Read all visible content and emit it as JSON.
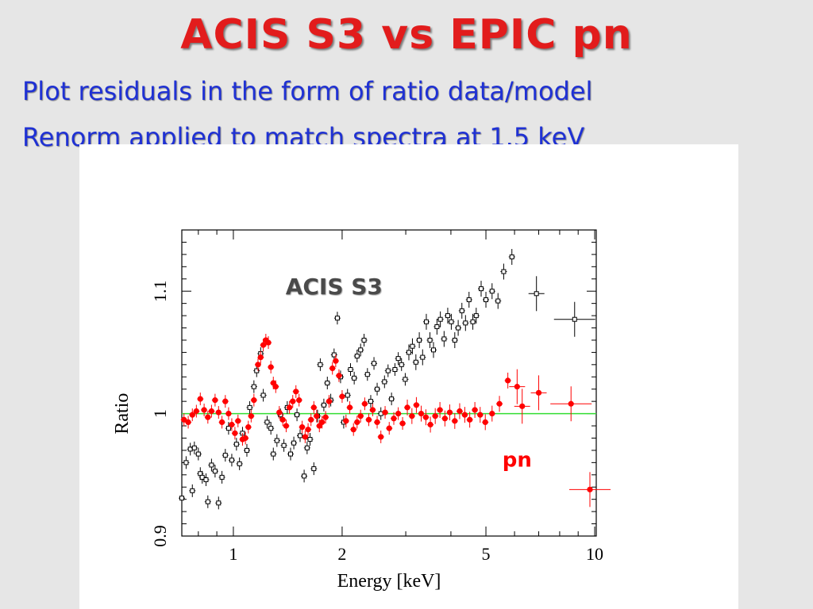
{
  "slide": {
    "title": "ACIS S3 vs EPIC pn",
    "subtitle_lines": [
      "Plot residuals in the form of  ratio data/model",
      "Renorm applied to match spectra at 1.5 keV"
    ]
  },
  "colors": {
    "title": "#e21c1c",
    "subtitle": "#1f31d4",
    "acis_series": "#000000",
    "pn_series": "#ff0000",
    "reference_line": "#33dd33",
    "background": "#e6e6e6"
  },
  "chart_data": {
    "type": "scatter",
    "title": "",
    "xlabel": "Energy [keV]",
    "ylabel": "Ratio",
    "xscale": "log",
    "xlim": [
      0.72,
      10.1
    ],
    "ylim": [
      0.9,
      1.15
    ],
    "xticks": [
      1,
      2,
      5,
      10
    ],
    "xtick_labels": [
      "1",
      "2",
      "5",
      "10"
    ],
    "yticks": [
      0.9,
      1,
      1.1
    ],
    "ytick_labels": [
      "0.9",
      "1",
      "1.1"
    ],
    "grid": false,
    "reference_line": 1.0,
    "annotations": [
      {
        "text": "ACIS S3",
        "series": "ACIS S3"
      },
      {
        "text": "pn",
        "series": "pn"
      }
    ],
    "series": [
      {
        "name": "ACIS S3",
        "marker": "open-square",
        "color": "#000000",
        "points": [
          {
            "x": 0.72,
            "y": 0.931
          },
          {
            "x": 0.74,
            "y": 0.96
          },
          {
            "x": 0.76,
            "y": 0.971
          },
          {
            "x": 0.77,
            "y": 0.937
          },
          {
            "x": 0.78,
            "y": 0.972
          },
          {
            "x": 0.8,
            "y": 0.967
          },
          {
            "x": 0.81,
            "y": 0.951
          },
          {
            "x": 0.82,
            "y": 0.948
          },
          {
            "x": 0.84,
            "y": 0.946
          },
          {
            "x": 0.85,
            "y": 0.928
          },
          {
            "x": 0.87,
            "y": 0.958
          },
          {
            "x": 0.89,
            "y": 0.953
          },
          {
            "x": 0.91,
            "y": 0.927
          },
          {
            "x": 0.93,
            "y": 0.948
          },
          {
            "x": 0.95,
            "y": 0.966
          },
          {
            "x": 0.97,
            "y": 0.988
          },
          {
            "x": 0.99,
            "y": 0.962
          },
          {
            "x": 1.02,
            "y": 0.975
          },
          {
            "x": 1.04,
            "y": 0.959
          },
          {
            "x": 1.06,
            "y": 0.984
          },
          {
            "x": 1.09,
            "y": 0.97
          },
          {
            "x": 1.11,
            "y": 1.005
          },
          {
            "x": 1.14,
            "y": 1.022
          },
          {
            "x": 1.16,
            "y": 1.035
          },
          {
            "x": 1.19,
            "y": 1.049
          },
          {
            "x": 1.21,
            "y": 1.015
          },
          {
            "x": 1.24,
            "y": 0.993
          },
          {
            "x": 1.27,
            "y": 0.988
          },
          {
            "x": 1.29,
            "y": 0.967
          },
          {
            "x": 1.32,
            "y": 0.978
          },
          {
            "x": 1.35,
            "y": 0.999
          },
          {
            "x": 1.38,
            "y": 0.974
          },
          {
            "x": 1.41,
            "y": 1.005
          },
          {
            "x": 1.44,
            "y": 0.967
          },
          {
            "x": 1.47,
            "y": 0.976
          },
          {
            "x": 1.5,
            "y": 0.999
          },
          {
            "x": 1.53,
            "y": 0.982
          },
          {
            "x": 1.57,
            "y": 0.949
          },
          {
            "x": 1.6,
            "y": 0.972
          },
          {
            "x": 1.63,
            "y": 0.979
          },
          {
            "x": 1.67,
            "y": 0.955
          },
          {
            "x": 1.71,
            "y": 0.998
          },
          {
            "x": 1.74,
            "y": 1.04
          },
          {
            "x": 1.78,
            "y": 1.007
          },
          {
            "x": 1.82,
            "y": 1.025
          },
          {
            "x": 1.86,
            "y": 1.011
          },
          {
            "x": 1.9,
            "y": 1.048
          },
          {
            "x": 1.94,
            "y": 1.078
          },
          {
            "x": 1.98,
            "y": 1.03
          },
          {
            "x": 2.02,
            "y": 0.993
          },
          {
            "x": 2.07,
            "y": 1.015
          },
          {
            "x": 2.11,
            "y": 1.036
          },
          {
            "x": 2.16,
            "y": 1.029
          },
          {
            "x": 2.2,
            "y": 1.047
          },
          {
            "x": 2.25,
            "y": 1.052
          },
          {
            "x": 2.3,
            "y": 1.06
          },
          {
            "x": 2.35,
            "y": 1.032
          },
          {
            "x": 2.4,
            "y": 1.01
          },
          {
            "x": 2.45,
            "y": 1.041
          },
          {
            "x": 2.5,
            "y": 1.02
          },
          {
            "x": 2.56,
            "y": 1.0
          },
          {
            "x": 2.62,
            "y": 1.026
          },
          {
            "x": 2.68,
            "y": 1.035
          },
          {
            "x": 2.74,
            "y": 1.012
          },
          {
            "x": 2.8,
            "y": 1.036
          },
          {
            "x": 2.86,
            "y": 1.045
          },
          {
            "x": 2.92,
            "y": 1.04
          },
          {
            "x": 2.99,
            "y": 1.028
          },
          {
            "x": 3.06,
            "y": 1.05
          },
          {
            "x": 3.13,
            "y": 1.055
          },
          {
            "x": 3.2,
            "y": 1.042
          },
          {
            "x": 3.27,
            "y": 1.06
          },
          {
            "x": 3.34,
            "y": 1.046
          },
          {
            "x": 3.42,
            "y": 1.075
          },
          {
            "x": 3.5,
            "y": 1.06
          },
          {
            "x": 3.58,
            "y": 1.052
          },
          {
            "x": 3.66,
            "y": 1.071
          },
          {
            "x": 3.74,
            "y": 1.077
          },
          {
            "x": 3.83,
            "y": 1.061
          },
          {
            "x": 3.92,
            "y": 1.08
          },
          {
            "x": 4.01,
            "y": 1.075
          },
          {
            "x": 4.1,
            "y": 1.06
          },
          {
            "x": 4.19,
            "y": 1.07
          },
          {
            "x": 4.29,
            "y": 1.084
          },
          {
            "x": 4.39,
            "y": 1.074
          },
          {
            "x": 4.49,
            "y": 1.093
          },
          {
            "x": 4.6,
            "y": 1.075
          },
          {
            "x": 4.7,
            "y": 1.08
          },
          {
            "x": 4.85,
            "y": 1.102
          },
          {
            "x": 5.0,
            "y": 1.093
          },
          {
            "x": 5.2,
            "y": 1.1
          },
          {
            "x": 5.4,
            "y": 1.092
          },
          {
            "x": 5.6,
            "y": 1.116
          },
          {
            "x": 5.9,
            "y": 1.128
          },
          {
            "x": 6.9,
            "y": 1.098
          },
          {
            "x": 8.8,
            "y": 1.077
          }
        ]
      },
      {
        "name": "pn",
        "marker": "filled-circle",
        "color": "#ff0000",
        "points": [
          {
            "x": 0.73,
            "y": 0.995
          },
          {
            "x": 0.75,
            "y": 0.993
          },
          {
            "x": 0.77,
            "y": 0.999
          },
          {
            "x": 0.79,
            "y": 1.002
          },
          {
            "x": 0.81,
            "y": 1.012
          },
          {
            "x": 0.83,
            "y": 1.003
          },
          {
            "x": 0.85,
            "y": 0.997
          },
          {
            "x": 0.87,
            "y": 1.002
          },
          {
            "x": 0.89,
            "y": 1.011
          },
          {
            "x": 0.91,
            "y": 1.001
          },
          {
            "x": 0.93,
            "y": 0.993
          },
          {
            "x": 0.95,
            "y": 1.01
          },
          {
            "x": 0.97,
            "y": 1.0
          },
          {
            "x": 0.99,
            "y": 0.991
          },
          {
            "x": 1.01,
            "y": 0.984
          },
          {
            "x": 1.03,
            "y": 0.994
          },
          {
            "x": 1.06,
            "y": 0.979
          },
          {
            "x": 1.08,
            "y": 0.98
          },
          {
            "x": 1.1,
            "y": 0.989
          },
          {
            "x": 1.12,
            "y": 0.998
          },
          {
            "x": 1.14,
            "y": 1.011
          },
          {
            "x": 1.17,
            "y": 1.04
          },
          {
            "x": 1.19,
            "y": 1.046
          },
          {
            "x": 1.21,
            "y": 1.056
          },
          {
            "x": 1.23,
            "y": 1.06
          },
          {
            "x": 1.25,
            "y": 1.058
          },
          {
            "x": 1.27,
            "y": 1.038
          },
          {
            "x": 1.29,
            "y": 1.025
          },
          {
            "x": 1.31,
            "y": 1.022
          },
          {
            "x": 1.34,
            "y": 1.001
          },
          {
            "x": 1.37,
            "y": 0.995
          },
          {
            "x": 1.4,
            "y": 0.99
          },
          {
            "x": 1.43,
            "y": 1.005
          },
          {
            "x": 1.46,
            "y": 1.01
          },
          {
            "x": 1.49,
            "y": 1.018
          },
          {
            "x": 1.52,
            "y": 1.011
          },
          {
            "x": 1.55,
            "y": 0.989
          },
          {
            "x": 1.58,
            "y": 0.981
          },
          {
            "x": 1.61,
            "y": 0.987
          },
          {
            "x": 1.64,
            "y": 0.995
          },
          {
            "x": 1.67,
            "y": 1.005
          },
          {
            "x": 1.7,
            "y": 0.998
          },
          {
            "x": 1.73,
            "y": 0.99
          },
          {
            "x": 1.76,
            "y": 0.993
          },
          {
            "x": 1.8,
            "y": 0.997
          },
          {
            "x": 1.84,
            "y": 1.01
          },
          {
            "x": 1.88,
            "y": 1.037
          },
          {
            "x": 1.92,
            "y": 1.043
          },
          {
            "x": 1.96,
            "y": 1.031
          },
          {
            "x": 2.0,
            "y": 1.014
          },
          {
            "x": 2.05,
            "y": 0.994
          },
          {
            "x": 2.1,
            "y": 1.005
          },
          {
            "x": 2.15,
            "y": 0.987
          },
          {
            "x": 2.2,
            "y": 0.993
          },
          {
            "x": 2.25,
            "y": 0.998
          },
          {
            "x": 2.31,
            "y": 1.008
          },
          {
            "x": 2.37,
            "y": 0.995
          },
          {
            "x": 2.43,
            "y": 1.003
          },
          {
            "x": 2.5,
            "y": 0.993
          },
          {
            "x": 2.56,
            "y": 0.981
          },
          {
            "x": 2.63,
            "y": 1.001
          },
          {
            "x": 2.7,
            "y": 0.988
          },
          {
            "x": 2.78,
            "y": 0.996
          },
          {
            "x": 2.86,
            "y": 1.0
          },
          {
            "x": 2.94,
            "y": 0.992
          },
          {
            "x": 3.03,
            "y": 1.005
          },
          {
            "x": 3.12,
            "y": 0.998
          },
          {
            "x": 3.21,
            "y": 1.007
          },
          {
            "x": 3.31,
            "y": 1.0
          },
          {
            "x": 3.41,
            "y": 0.997
          },
          {
            "x": 3.51,
            "y": 0.991
          },
          {
            "x": 3.62,
            "y": 0.998
          },
          {
            "x": 3.73,
            "y": 1.003
          },
          {
            "x": 3.85,
            "y": 0.996
          },
          {
            "x": 3.97,
            "y": 1.001
          },
          {
            "x": 4.1,
            "y": 0.994
          },
          {
            "x": 4.23,
            "y": 1.002
          },
          {
            "x": 4.37,
            "y": 0.999
          },
          {
            "x": 4.51,
            "y": 0.995
          },
          {
            "x": 4.66,
            "y": 1.003
          },
          {
            "x": 4.82,
            "y": 0.999
          },
          {
            "x": 4.98,
            "y": 0.993
          },
          {
            "x": 5.2,
            "y": 1.0
          },
          {
            "x": 5.45,
            "y": 1.008
          },
          {
            "x": 5.75,
            "y": 1.027
          },
          {
            "x": 6.1,
            "y": 1.022
          },
          {
            "x": 6.3,
            "y": 1.006
          },
          {
            "x": 7.0,
            "y": 1.017
          },
          {
            "x": 8.6,
            "y": 1.008
          },
          {
            "x": 9.7,
            "y": 0.938
          }
        ]
      }
    ]
  }
}
